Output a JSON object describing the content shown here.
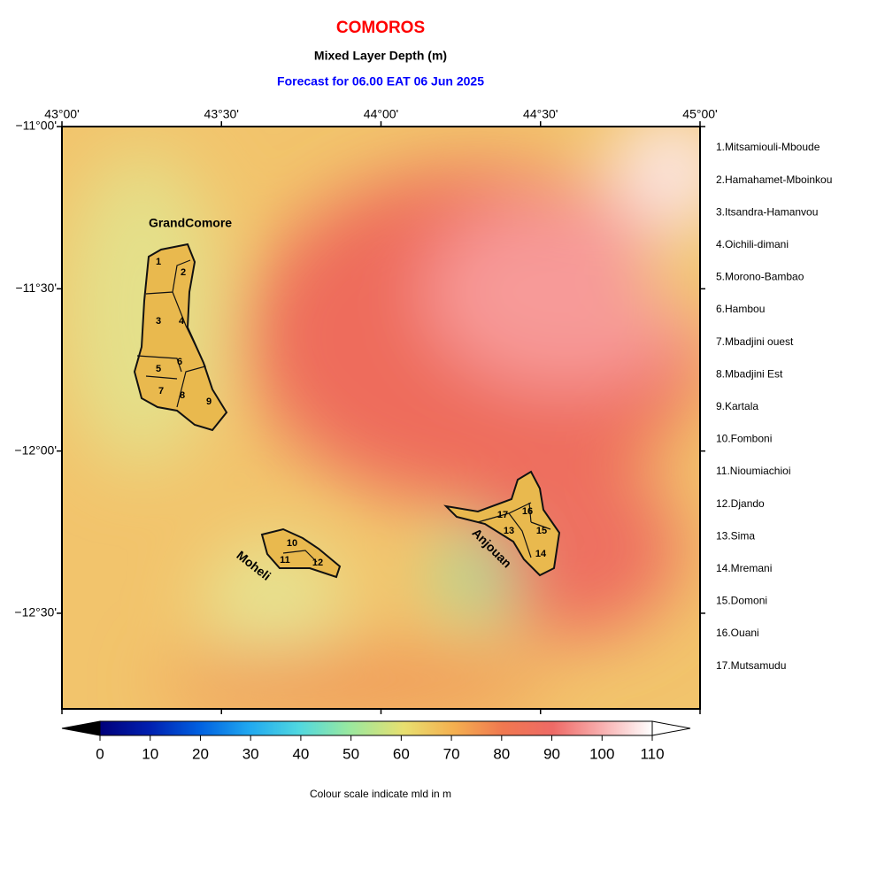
{
  "header": {
    "title": "COMOROS",
    "subtitle": "Mixed Layer Depth (m)",
    "forecast": "Forecast for  06.00 EAT 06 Jun 2025"
  },
  "map": {
    "lon_ticks": [
      "43°00'",
      "43°30'",
      "44°00'",
      "44°30'",
      "45°00'"
    ],
    "lat_ticks": [
      "−11°00'",
      "−11°30'",
      "−12°00'",
      "−12°30'"
    ],
    "island_labels": [
      "GrandComore",
      "Moheli",
      "Anjouan"
    ],
    "region_numbers": [
      "1",
      "2",
      "3",
      "4",
      "5",
      "6",
      "7",
      "8",
      "9",
      "10",
      "11",
      "12",
      "13",
      "14",
      "15",
      "16",
      "17"
    ]
  },
  "regions": [
    "1.Mitsamiouli-Mboude",
    "2.Hamahamet-Mboinkou",
    "3.Itsandra-Hamanvou",
    "4.Oichili-dimani",
    "5.Morono-Bambao",
    "6.Hambou",
    "7.Mbadjini ouest",
    "8.Mbadjini Est",
    "9.Kartala",
    "10.Fomboni",
    "11.Nioumiachioi",
    "12.Djando",
    "13.Sima",
    "14.Mremani",
    "15.Domoni",
    "16.Ouani",
    "17.Mutsamudu"
  ],
  "colorbar": {
    "ticks": [
      0,
      10,
      20,
      30,
      40,
      50,
      60,
      70,
      80,
      90,
      100,
      110
    ],
    "caption": "Colour scale indicate mld in m"
  }
}
